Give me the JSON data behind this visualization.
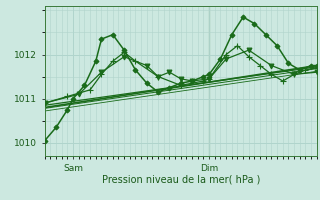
{
  "background_color": "#cce8e0",
  "grid_color": "#b0d4cc",
  "line_color": "#1a6b1a",
  "axis_color": "#5a9a5a",
  "xlabel": "Pression niveau de la mer( hPa )",
  "xlabel_color": "#1a5a1a",
  "tick_label_color": "#1a5a1a",
  "ylim": [
    1009.7,
    1013.1
  ],
  "yticks": [
    1010,
    1011,
    1012
  ],
  "xlim": [
    0,
    48
  ],
  "xtick_positions": [
    5,
    29
  ],
  "xtick_labels": [
    "Sam",
    "Dim"
  ],
  "vline_x": 29,
  "series": [
    {
      "x": [
        0,
        2,
        4,
        5,
        7,
        9,
        10,
        12,
        14,
        16,
        18,
        20,
        22,
        24,
        26,
        28,
        29,
        31,
        33,
        35,
        37,
        39,
        41,
        43,
        45,
        47,
        48
      ],
      "y": [
        1010.05,
        1010.35,
        1010.75,
        1011.0,
        1011.3,
        1011.85,
        1012.35,
        1012.45,
        1012.1,
        1011.65,
        1011.35,
        1011.15,
        1011.25,
        1011.35,
        1011.4,
        1011.5,
        1011.55,
        1011.9,
        1012.45,
        1012.85,
        1012.7,
        1012.45,
        1012.2,
        1011.8,
        1011.65,
        1011.75,
        1011.75
      ],
      "marker": "D",
      "markersize": 2.5,
      "linewidth": 1.1,
      "zorder": 5,
      "markevery": 2
    },
    {
      "x": [
        0,
        4,
        8,
        10,
        12,
        14,
        16,
        20,
        24,
        28,
        29,
        32,
        34,
        36,
        38,
        40,
        42,
        44,
        46,
        48
      ],
      "y": [
        1010.9,
        1011.05,
        1011.2,
        1011.55,
        1011.85,
        1012.05,
        1011.85,
        1011.5,
        1011.3,
        1011.4,
        1011.45,
        1012.0,
        1012.2,
        1011.95,
        1011.75,
        1011.55,
        1011.4,
        1011.55,
        1011.65,
        1011.7
      ],
      "marker": "+",
      "markersize": 4,
      "linewidth": 0.9,
      "zorder": 4,
      "markevery": 1
    },
    {
      "x": [
        0,
        6,
        10,
        14,
        18,
        20,
        22,
        24,
        26,
        29,
        32,
        36,
        40,
        44,
        48
      ],
      "y": [
        1010.9,
        1011.1,
        1011.6,
        1011.95,
        1011.75,
        1011.5,
        1011.6,
        1011.45,
        1011.4,
        1011.45,
        1011.9,
        1012.1,
        1011.75,
        1011.55,
        1011.6
      ],
      "marker": "v",
      "markersize": 3.5,
      "linewidth": 0.9,
      "zorder": 3,
      "markevery": 1
    },
    {
      "x": [
        0,
        48
      ],
      "y": [
        1010.8,
        1011.75
      ],
      "marker": null,
      "markersize": 0,
      "linewidth": 1.2,
      "zorder": 2,
      "markevery": 1
    },
    {
      "x": [
        0,
        48
      ],
      "y": [
        1010.85,
        1011.72
      ],
      "marker": null,
      "markersize": 0,
      "linewidth": 0.9,
      "zorder": 2,
      "markevery": 1
    },
    {
      "x": [
        0,
        48
      ],
      "y": [
        1010.78,
        1011.68
      ],
      "marker": null,
      "markersize": 0,
      "linewidth": 0.7,
      "zorder": 2,
      "markevery": 1
    },
    {
      "x": [
        0,
        48
      ],
      "y": [
        1010.72,
        1011.62
      ],
      "marker": null,
      "markersize": 0,
      "linewidth": 0.6,
      "zorder": 2,
      "markevery": 1
    }
  ]
}
